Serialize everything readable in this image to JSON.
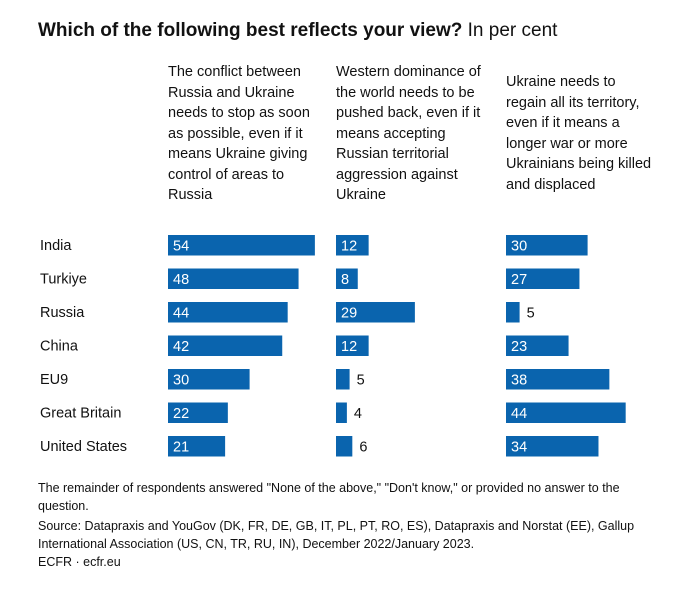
{
  "title": "Which of the following best reflects your view?",
  "subtitle": "In per cent",
  "chart_data": {
    "type": "bar",
    "orientation": "horizontal",
    "categories": [
      "India",
      "Turkiye",
      "Russia",
      "China",
      "EU9",
      "Great Britain",
      "United States"
    ],
    "series": [
      {
        "name": "The conflict between Russia and Ukraine needs to stop as soon as possible, even if it means Ukraine giving control of areas to Russia",
        "values": [
          54,
          48,
          44,
          42,
          30,
          22,
          21
        ]
      },
      {
        "name": "Western dominance of the world needs to be pushed back, even if it means accepting Russian territorial aggression against Ukraine",
        "values": [
          12,
          8,
          29,
          12,
          5,
          4,
          6
        ]
      },
      {
        "name": "Ukraine needs to regain all its territory, even if it means a longer war or more Ukrainians being killed and displaced",
        "values": [
          30,
          27,
          5,
          23,
          38,
          44,
          34
        ]
      }
    ],
    "bar_color": "#0a64ae",
    "grid": false
  },
  "footnote": "The remainder of respondents answered \"None of the above,\" \"Don't know,\" or provided no answer to the question.",
  "source": "Source: Datapraxis and YouGov (DK, FR, DE, GB, IT, PL, PT, RO, ES), Datapraxis and Norstat (EE), Gallup International Association (US, CN, TR, RU, IN), December 2022/January 2023.",
  "credit": "ECFR · ecfr.eu"
}
